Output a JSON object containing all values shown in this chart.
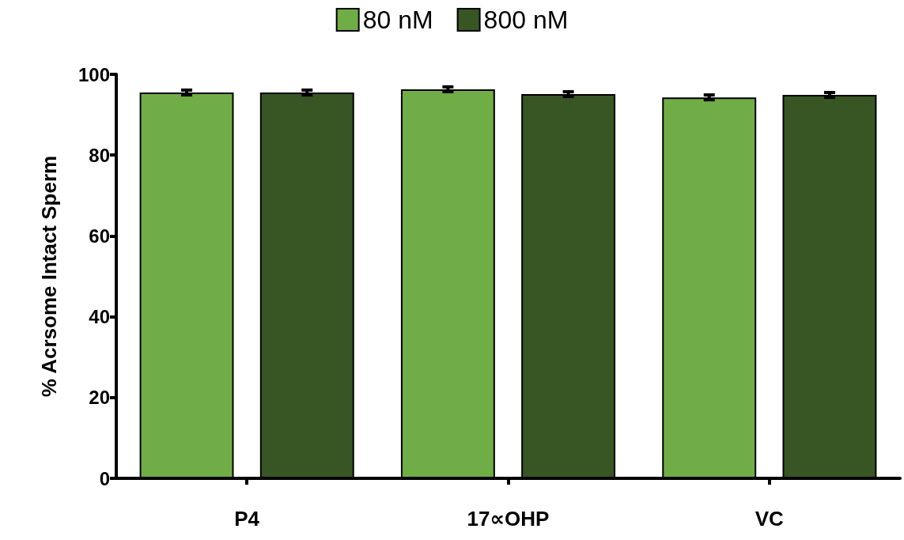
{
  "chart_data": {
    "type": "bar",
    "ylabel": "% Acrsome Intact Sperm",
    "categories": [
      "P4",
      "17∝OHP",
      "VC"
    ],
    "series": [
      {
        "name": "80 nM",
        "color": "#70ad47",
        "values": [
          95.5,
          96.3,
          94.3
        ],
        "errors": [
          0.6,
          0.6,
          0.6
        ]
      },
      {
        "name": "800 nM",
        "color": "#375623",
        "values": [
          95.5,
          95.1,
          94.9
        ],
        "errors": [
          0.6,
          0.6,
          0.6
        ]
      }
    ],
    "ylim": [
      0,
      100
    ],
    "yticks": [
      0,
      20,
      40,
      60,
      80,
      100
    ],
    "grid": false,
    "legend": "top"
  }
}
